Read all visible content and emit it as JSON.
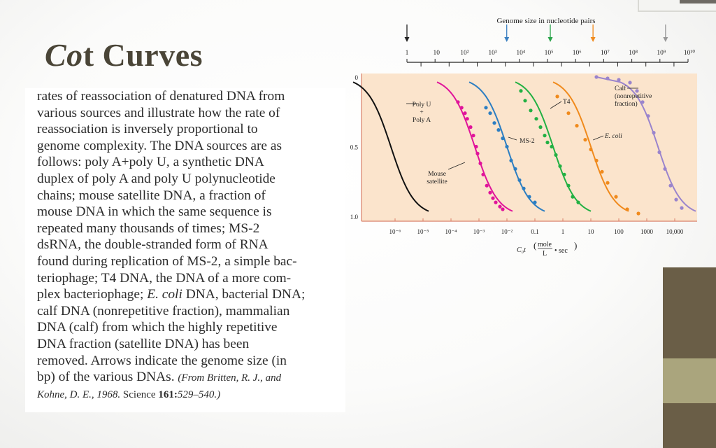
{
  "slide": {
    "title_italic": "Co",
    "title_rest": "t Curves",
    "caption_lines": [
      "rates of reassociation of denatured DNA from",
      "various sources and illustrate how the rate of",
      "reassociation is inversely proportional to",
      "genome complexity. The DNA sources are as",
      "follows: poly A+poly U, a synthetic DNA",
      "duplex of poly A and poly U polynucleotide",
      "chains; mouse satellite DNA, a fraction of",
      "mouse DNA in which the same sequence is",
      "repeated many thousands of times; MS-2",
      "dsRNA, the double-stranded form of RNA",
      "found during replication of MS-2, a simple bac-",
      "teriophage; T4 DNA, the DNA of a more com-",
      {
        "pre": "plex bacteriophage; ",
        "italic": "E. coli",
        "post": " DNA, bacterial DNA;"
      },
      "calf DNA (nonrepetitive fraction), mammalian",
      "DNA (calf) from which the highly repetitive",
      "DNA fraction (satellite DNA) has been",
      "removed. Arrows indicate the genome size (in",
      {
        "pre": "bp) of the various DNAs. ",
        "italic": "(From Britten, R. J., and",
        "post": ""
      }
    ],
    "source_line": {
      "italic": "Kohne, D. E., 1968.",
      "normal": " Science ",
      "bold": "161:",
      "italic2": "529–540.)"
    }
  },
  "chart_data": {
    "type": "line",
    "top_axis": {
      "label": "Genome size in nucleotide pairs",
      "ticks": [
        "1",
        "10",
        "10²",
        "10³",
        "10⁴",
        "10⁵",
        "10⁶",
        "10⁷",
        "10⁸",
        "10⁹",
        "10¹⁰"
      ],
      "range_log10": [
        0,
        10
      ],
      "arrows": [
        {
          "log10": 0,
          "color": "#222222"
        },
        {
          "log10": 3.55,
          "color": "#3a7fc0"
        },
        {
          "log10": 5.1,
          "color": "#2aa44a"
        },
        {
          "log10": 6.62,
          "color": "#f08a1c"
        },
        {
          "log10": 9.2,
          "color": "#999999"
        }
      ]
    },
    "x_axis": {
      "label_var": "C₀t",
      "label_units_num": "mole",
      "label_units_den": "L",
      "label_units_tail": "• sec",
      "ticks": [
        {
          "log10": -6,
          "label": "10⁻⁶"
        },
        {
          "log10": -5,
          "label": "10⁻⁵"
        },
        {
          "log10": -4,
          "label": "10⁻⁴"
        },
        {
          "log10": -3,
          "label": "10⁻³"
        },
        {
          "log10": -2,
          "label": "10⁻²"
        },
        {
          "log10": -1,
          "label": "0.1"
        },
        {
          "log10": 0,
          "label": "1"
        },
        {
          "log10": 1,
          "label": "10"
        },
        {
          "log10": 2,
          "label": "100"
        },
        {
          "log10": 3,
          "label": "1000"
        },
        {
          "log10": 4,
          "label": "10,000"
        }
      ],
      "range_log10": [
        -7.2,
        4.8
      ]
    },
    "y_axis": {
      "tick_labels": [
        "0",
        "0.5",
        "1.0"
      ],
      "tick_values": [
        0,
        0.5,
        1.0
      ],
      "range": [
        0,
        1.0
      ],
      "inverted": true
    },
    "background_color": "#fbe4cc",
    "series": [
      {
        "name": "Poly U + Poly A",
        "color": "#111111",
        "c_half_log10": -6.15,
        "points": []
      },
      {
        "name": "Mouse satellite",
        "color": "#e0149a",
        "c_half_log10": -3.15,
        "points": [
          [
            -3.75,
            0.18
          ],
          [
            -3.62,
            0.22
          ],
          [
            -3.5,
            0.26
          ],
          [
            -3.42,
            0.3
          ],
          [
            -3.3,
            0.36
          ],
          [
            -3.2,
            0.42
          ],
          [
            -3.1,
            0.5
          ],
          [
            -3.05,
            0.55
          ],
          [
            -2.95,
            0.62
          ],
          [
            -2.85,
            0.7
          ],
          [
            -2.72,
            0.78
          ],
          [
            -2.6,
            0.83
          ],
          [
            -2.5,
            0.87
          ],
          [
            -2.4,
            0.9
          ],
          [
            -2.25,
            0.93
          ],
          [
            -2.15,
            0.95
          ]
        ]
      },
      {
        "name": "MS-2",
        "color": "#2c7ec2",
        "c_half_log10": -2.0,
        "points": [
          [
            -2.75,
            0.22
          ],
          [
            -2.6,
            0.26
          ],
          [
            -2.45,
            0.33
          ],
          [
            -2.3,
            0.38
          ],
          [
            -2.15,
            0.44
          ],
          [
            -2.0,
            0.5
          ],
          [
            -1.85,
            0.6
          ],
          [
            -1.7,
            0.66
          ],
          [
            -1.55,
            0.74
          ],
          [
            -1.4,
            0.8
          ],
          [
            -1.2,
            0.86
          ],
          [
            -1.0,
            0.9
          ]
        ]
      },
      {
        "name": "T4",
        "color": "#22b043",
        "c_half_log10": -0.35,
        "points": [
          [
            -1.5,
            0.1
          ],
          [
            -1.35,
            0.17
          ],
          [
            -1.15,
            0.24
          ],
          [
            -0.95,
            0.3
          ],
          [
            -0.8,
            0.36
          ],
          [
            -0.65,
            0.42
          ],
          [
            -0.55,
            0.47
          ],
          [
            -0.4,
            0.5
          ],
          [
            -0.25,
            0.56
          ],
          [
            -0.1,
            0.64
          ],
          [
            0.05,
            0.7
          ],
          [
            0.2,
            0.78
          ],
          [
            0.35,
            0.86
          ],
          [
            0.55,
            0.9
          ]
        ]
      },
      {
        "name": "E. coli",
        "color": "#f08a1c",
        "c_half_log10": 1.0,
        "points": [
          [
            -0.2,
            0.14
          ],
          [
            0.2,
            0.26
          ],
          [
            0.5,
            0.35
          ],
          [
            0.8,
            0.45
          ],
          [
            1.0,
            0.52
          ],
          [
            1.2,
            0.6
          ],
          [
            1.4,
            0.68
          ],
          [
            1.6,
            0.76
          ],
          [
            1.9,
            0.86
          ],
          [
            2.3,
            0.95
          ],
          [
            2.7,
            0.98
          ]
        ]
      },
      {
        "name": "Calf (nonrepetitive fraction)",
        "color": "#9a84cc",
        "c_half_log10": 3.4,
        "points": [
          [
            1.2,
            0.0
          ],
          [
            1.6,
            0.01
          ],
          [
            2.0,
            0.02
          ],
          [
            2.4,
            0.04
          ],
          [
            2.65,
            0.1
          ],
          [
            2.85,
            0.18
          ],
          [
            3.05,
            0.28
          ],
          [
            3.25,
            0.4
          ],
          [
            3.45,
            0.54
          ],
          [
            3.65,
            0.66
          ],
          [
            3.85,
            0.78
          ],
          [
            4.05,
            0.88
          ],
          [
            4.25,
            0.94
          ]
        ]
      }
    ],
    "annotations": [
      {
        "series": "Poly U + Poly A",
        "lines": [
          "Poly U",
          "+",
          "Poly A"
        ]
      },
      {
        "series": "Mouse satellite",
        "lines": [
          "Mouse",
          "satellite"
        ]
      },
      {
        "series": "MS-2",
        "lines": [
          "MS-2"
        ]
      },
      {
        "series": "T4",
        "lines": [
          "T4"
        ]
      },
      {
        "series": "E. coli",
        "lines": [
          "E. coli"
        ],
        "italic": true
      },
      {
        "series": "Calf (nonrepetitive fraction)",
        "lines": [
          "Calf",
          "(nonrepetitive",
          "fraction)"
        ]
      }
    ],
    "grid": false
  }
}
